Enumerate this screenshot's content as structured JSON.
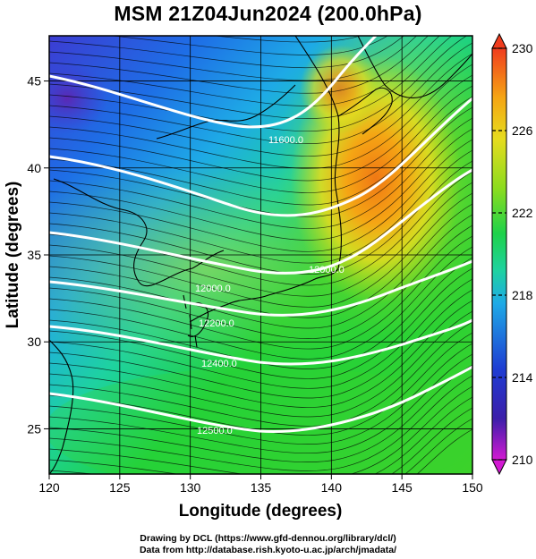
{
  "title": "MSM 21Z04Jun2024 (200.0hPa)",
  "chart_data": {
    "type": "heatmap",
    "title": "MSM 21Z04Jun2024 (200.0hPa)",
    "xlabel": "Longitude (degrees)",
    "ylabel": "Latitude  (degrees)",
    "xlim": [
      120,
      150
    ],
    "ylim": [
      22.4,
      47.6
    ],
    "x_ticks": [
      "120",
      "125",
      "130",
      "135",
      "140",
      "145",
      "150"
    ],
    "y_ticks": [
      "25",
      "30",
      "35",
      "40",
      "45"
    ],
    "colorbar": {
      "range": [
        210,
        230
      ],
      "tick_labels": [
        "230",
        "226",
        "222",
        "218",
        "214",
        "210"
      ],
      "colors": [
        "#d21ad2",
        "#2d1ea0",
        "#1e50d2",
        "#1eb4e6",
        "#1ecd8c",
        "#1ed24a",
        "#8cdc1e",
        "#dcdc1e",
        "#f5a514",
        "#f03c1e"
      ]
    },
    "contour_labels": [
      "11600.0",
      "12000.0",
      "12000.0",
      "12200.0",
      "12400.0",
      "12500.0"
    ],
    "grid": true
  },
  "footer": {
    "line1": "Drawing by DCL (https://www.gfd-dennou.org/library/dcl/)",
    "line2": "Data from http://database.rish.kyoto-u.ac.jp/arch/jmadata/"
  }
}
